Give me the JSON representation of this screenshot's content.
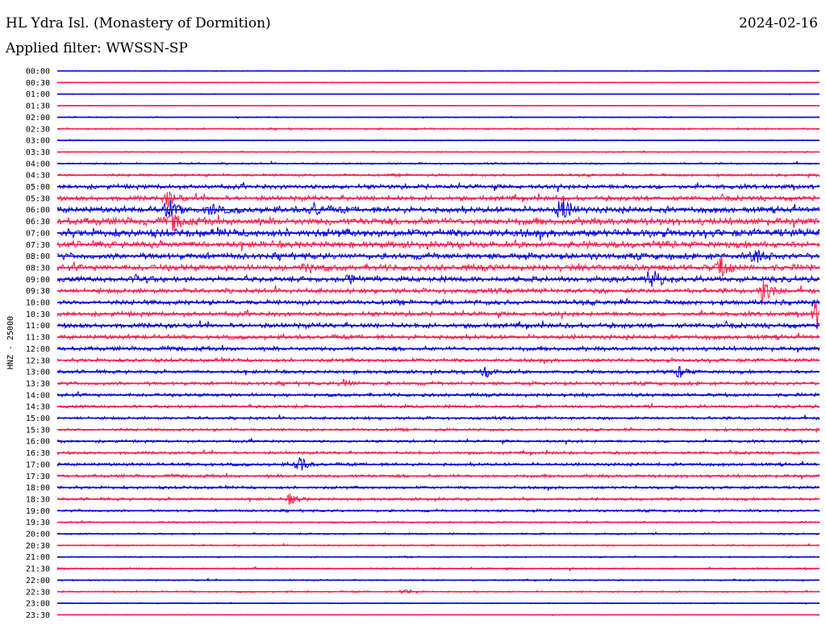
{
  "header": {
    "title": "HL Ydra Isl. (Monastery of Dormition)",
    "date": "2024-02-16",
    "filter": "Applied filter: WWSSN-SP"
  },
  "chart_data": {
    "type": "line",
    "title": "HL Ydra Isl. (Monastery of Dormition)",
    "subtitle": "Applied filter: WWSSN-SP",
    "ylabel": "HNZ - 25000",
    "rows": [
      "00:00",
      "00:30",
      "01:00",
      "01:30",
      "02:00",
      "02:30",
      "03:00",
      "03:30",
      "04:00",
      "04:30",
      "05:00",
      "05:30",
      "06:00",
      "06:30",
      "07:00",
      "07:30",
      "08:00",
      "08:30",
      "09:00",
      "09:30",
      "10:00",
      "10:30",
      "11:00",
      "11:30",
      "12:00",
      "12:30",
      "13:00",
      "13:30",
      "14:00",
      "14:30",
      "15:00",
      "15:30",
      "16:00",
      "16:30",
      "17:00",
      "17:30",
      "18:00",
      "18:30",
      "19:00",
      "19:30",
      "20:00",
      "20:30",
      "21:00",
      "21:30",
      "22:00",
      "22:30",
      "23:00",
      "23:30"
    ],
    "noise_level": [
      0.3,
      0.5,
      0.4,
      0.3,
      0.6,
      1.0,
      0.6,
      0.7,
      1.0,
      1.5,
      2.6,
      2.8,
      3.6,
      4.2,
      4.6,
      3.8,
      3.6,
      3.6,
      3.2,
      2.8,
      2.8,
      2.6,
      2.8,
      2.6,
      2.4,
      2.2,
      2.0,
      2.0,
      2.0,
      1.8,
      1.7,
      1.6,
      1.5,
      1.6,
      1.8,
      1.8,
      1.6,
      1.6,
      1.4,
      1.0,
      1.0,
      0.9,
      0.8,
      1.0,
      0.8,
      0.9,
      0.6,
      0.5
    ],
    "events": [
      {
        "row": 12,
        "x": 0.145,
        "amp": 15
      },
      {
        "row": 12,
        "x": 0.66,
        "amp": 22
      },
      {
        "row": 12,
        "x": 0.2,
        "amp": 8
      },
      {
        "row": 12,
        "x": 0.335,
        "amp": 10
      },
      {
        "row": 11,
        "x": 0.145,
        "amp": 10
      },
      {
        "row": 13,
        "x": 0.15,
        "amp": 12
      },
      {
        "row": 18,
        "x": 0.78,
        "amp": 20
      },
      {
        "row": 17,
        "x": 0.87,
        "amp": 16
      },
      {
        "row": 19,
        "x": 0.925,
        "amp": 18
      },
      {
        "row": 21,
        "x": 0.995,
        "amp": 20
      },
      {
        "row": 16,
        "x": 0.915,
        "amp": 12
      },
      {
        "row": 17,
        "x": 0.325,
        "amp": 7
      },
      {
        "row": 18,
        "x": 0.38,
        "amp": 8
      },
      {
        "row": 18,
        "x": 0.105,
        "amp": 7
      },
      {
        "row": 26,
        "x": 0.815,
        "amp": 9
      },
      {
        "row": 26,
        "x": 0.56,
        "amp": 8
      },
      {
        "row": 27,
        "x": 0.375,
        "amp": 7
      },
      {
        "row": 34,
        "x": 0.315,
        "amp": 12
      },
      {
        "row": 37,
        "x": 0.305,
        "amp": 7
      },
      {
        "row": 45,
        "x": 0.455,
        "amp": 5
      }
    ],
    "colors": {
      "even": "#0000dd",
      "odd": "#ff1a4d"
    },
    "grid": false
  }
}
